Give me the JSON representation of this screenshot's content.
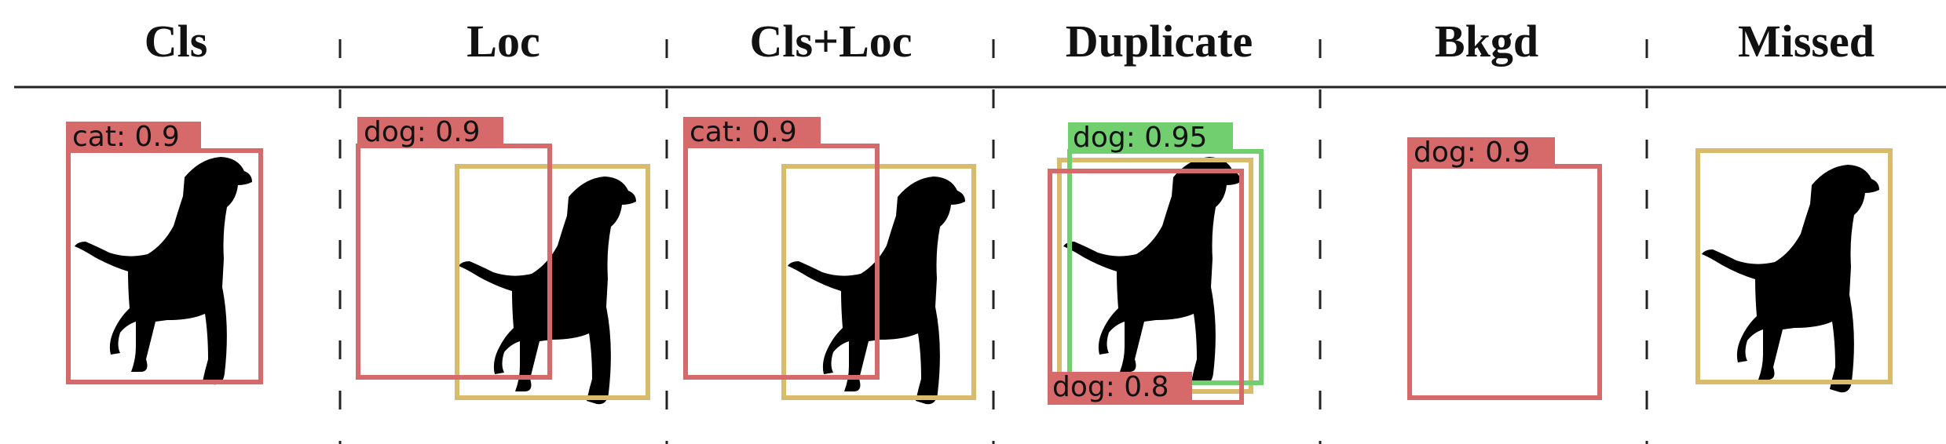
{
  "headers": [
    "Cls",
    "Loc",
    "Cls+Loc",
    "Duplicate",
    "Bkgd",
    "Missed"
  ],
  "labels": {
    "cls_pred": "cat: 0.9",
    "loc_pred": "dog: 0.9",
    "clsloc_pred": "cat: 0.9",
    "dup_pred_high": "dog: 0.95",
    "dup_pred_low": "dog: 0.8",
    "bkgd_pred": "dog: 0.9"
  },
  "colors": {
    "ground_truth": "#d8bb6b",
    "false_prediction": "#d66a6a",
    "correct_prediction": "#71cf6f",
    "silhouette": "#000000"
  }
}
